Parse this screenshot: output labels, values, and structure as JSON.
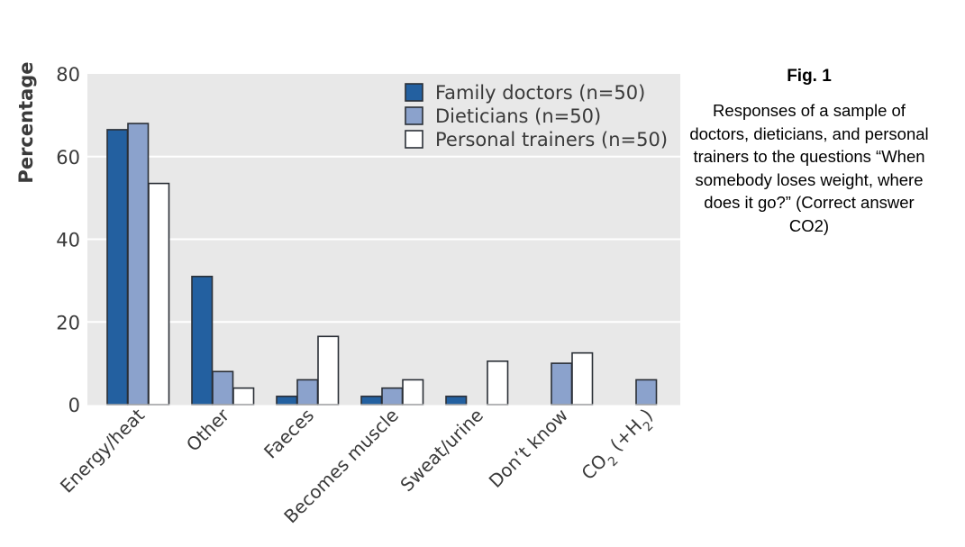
{
  "caption": {
    "figure_label": "Fig. 1",
    "text": "Responses of a sample of doctors, dieticians, and personal trainers to the questions “When somebody loses weight, where does it go?” (Correct answer CO2)"
  },
  "colors": {
    "panel_bg": "#e8e8e8",
    "grid": "#ffffff",
    "bar_stroke": "#2a2f36",
    "text": "#3a3a3a"
  },
  "chart_data": {
    "type": "bar",
    "title": "",
    "xlabel": "",
    "ylabel": "Percentage",
    "ylim": [
      0,
      80
    ],
    "yticks": [
      "0",
      "20",
      "40",
      "60",
      "80"
    ],
    "categories": [
      "Energy/heat",
      "Other",
      "Faeces",
      "Becomes muscle",
      "Sweat/urine",
      "Don’t know",
      "CO2 (+H2)"
    ],
    "grid": true,
    "legend_position": "top-right",
    "series": [
      {
        "name": "Family doctors (n=50)",
        "color": "#2360a0",
        "values": [
          66.5,
          31,
          2,
          2,
          2,
          0,
          0
        ]
      },
      {
        "name": "Dieticians (n=50)",
        "color": "#8ba2cc",
        "values": [
          68,
          8,
          6,
          4,
          0,
          10,
          6
        ]
      },
      {
        "name": "Personal trainers (n=50)",
        "color": "#ffffff",
        "values": [
          53.5,
          4,
          16.5,
          6,
          10.5,
          12.5,
          0
        ]
      }
    ]
  }
}
